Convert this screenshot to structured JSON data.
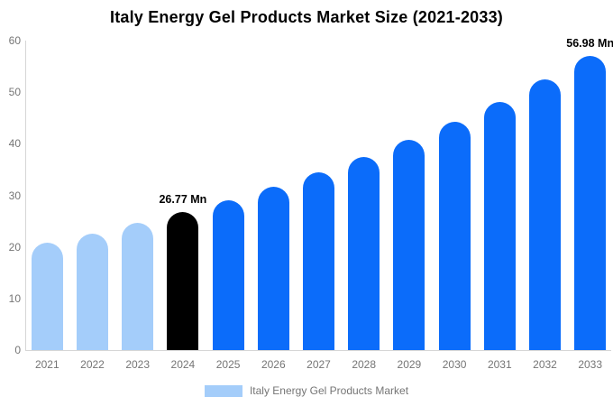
{
  "chart_data": {
    "type": "bar",
    "title": "Italy Energy Gel Products Market Size (2021-2033)",
    "categories": [
      "2021",
      "2022",
      "2023",
      "2024",
      "2025",
      "2026",
      "2027",
      "2028",
      "2029",
      "2030",
      "2031",
      "2032",
      "2033"
    ],
    "values": [
      20.81,
      22.63,
      24.61,
      26.77,
      29.11,
      31.66,
      34.44,
      37.45,
      40.73,
      44.3,
      48.18,
      52.4,
      56.98
    ],
    "unit": "Mn",
    "bar_colors": [
      "#a4cdfa",
      "#a4cdfa",
      "#a4cdfa",
      "#000000",
      "#0b6cfa",
      "#0b6cfa",
      "#0b6cfa",
      "#0b6cfa",
      "#0b6cfa",
      "#0b6cfa",
      "#0b6cfa",
      "#0b6cfa",
      "#0b6cfa"
    ],
    "value_labels": [
      {
        "category": "2024",
        "text": "26.77 Mn"
      },
      {
        "category": "2033",
        "text": "56.98 Mn"
      }
    ],
    "xlabel": "",
    "ylabel": "",
    "ylim": [
      0,
      60
    ],
    "yticks": [
      0,
      10,
      20,
      30,
      40,
      50,
      60
    ],
    "grid": false,
    "legend": {
      "position": "bottom",
      "entries": [
        {
          "label": "Italy Energy Gel Products Market",
          "color": "#a4cdfa"
        }
      ]
    }
  },
  "colors": {
    "background": "#ffffff",
    "axis_line": "#d6d6d6",
    "tick_text": "#757575",
    "title_text": "#000000",
    "annotation_text": "#000000",
    "historical_bar": "#a4cdfa",
    "base_year_bar": "#000000",
    "forecast_bar": "#0b6cfa"
  }
}
